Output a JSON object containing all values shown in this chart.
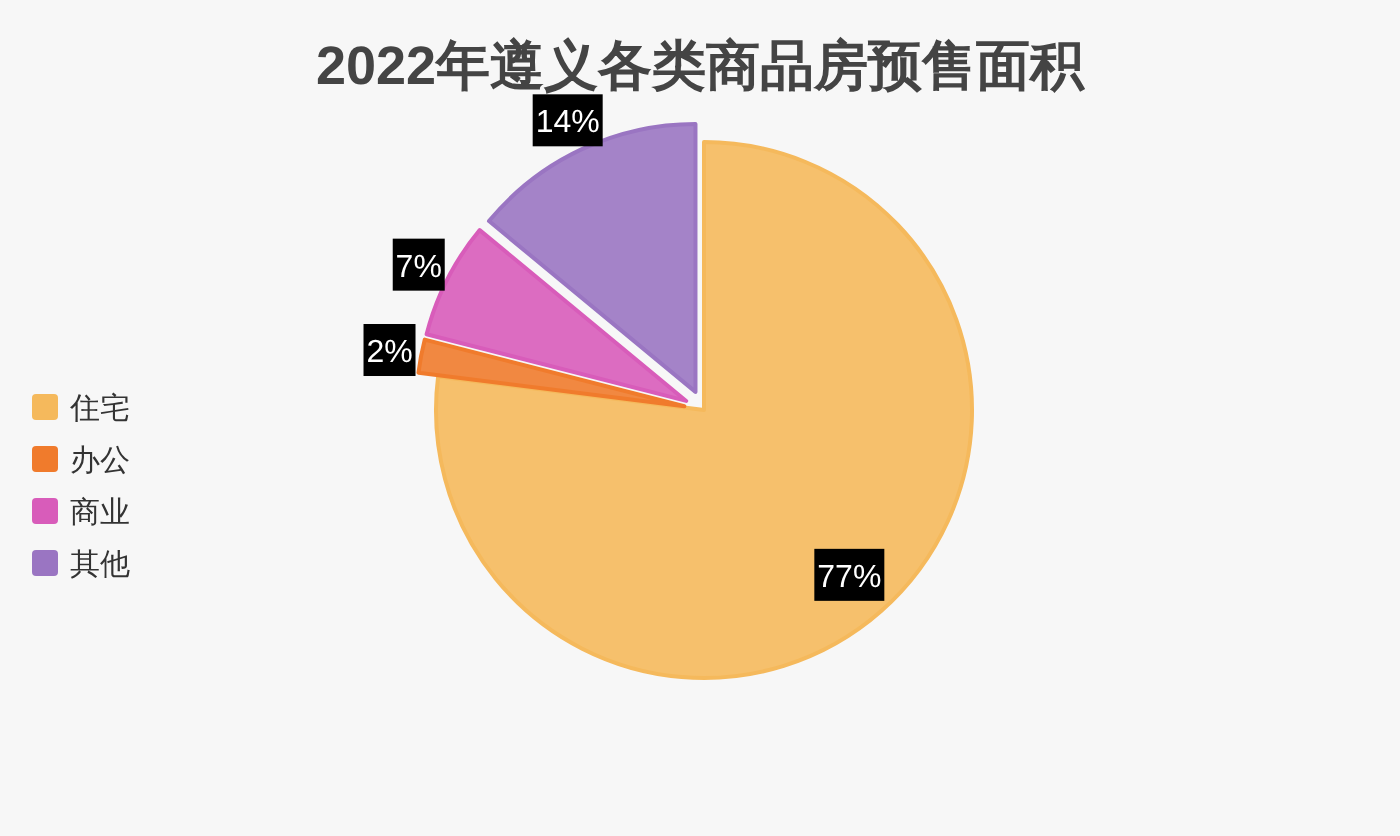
{
  "chart_data": {
    "type": "pie",
    "title": "2022年遵义各类商品房预售面积",
    "categories": [
      "住宅",
      "办公",
      "商业",
      "其他"
    ],
    "values": [
      77,
      2,
      7,
      14
    ],
    "colors": [
      "#f5b95c",
      "#f07b2c",
      "#d85cba",
      "#9a75c2"
    ],
    "value_labels": [
      "77%",
      "2%",
      "7%",
      "14%"
    ],
    "legend": "left"
  }
}
